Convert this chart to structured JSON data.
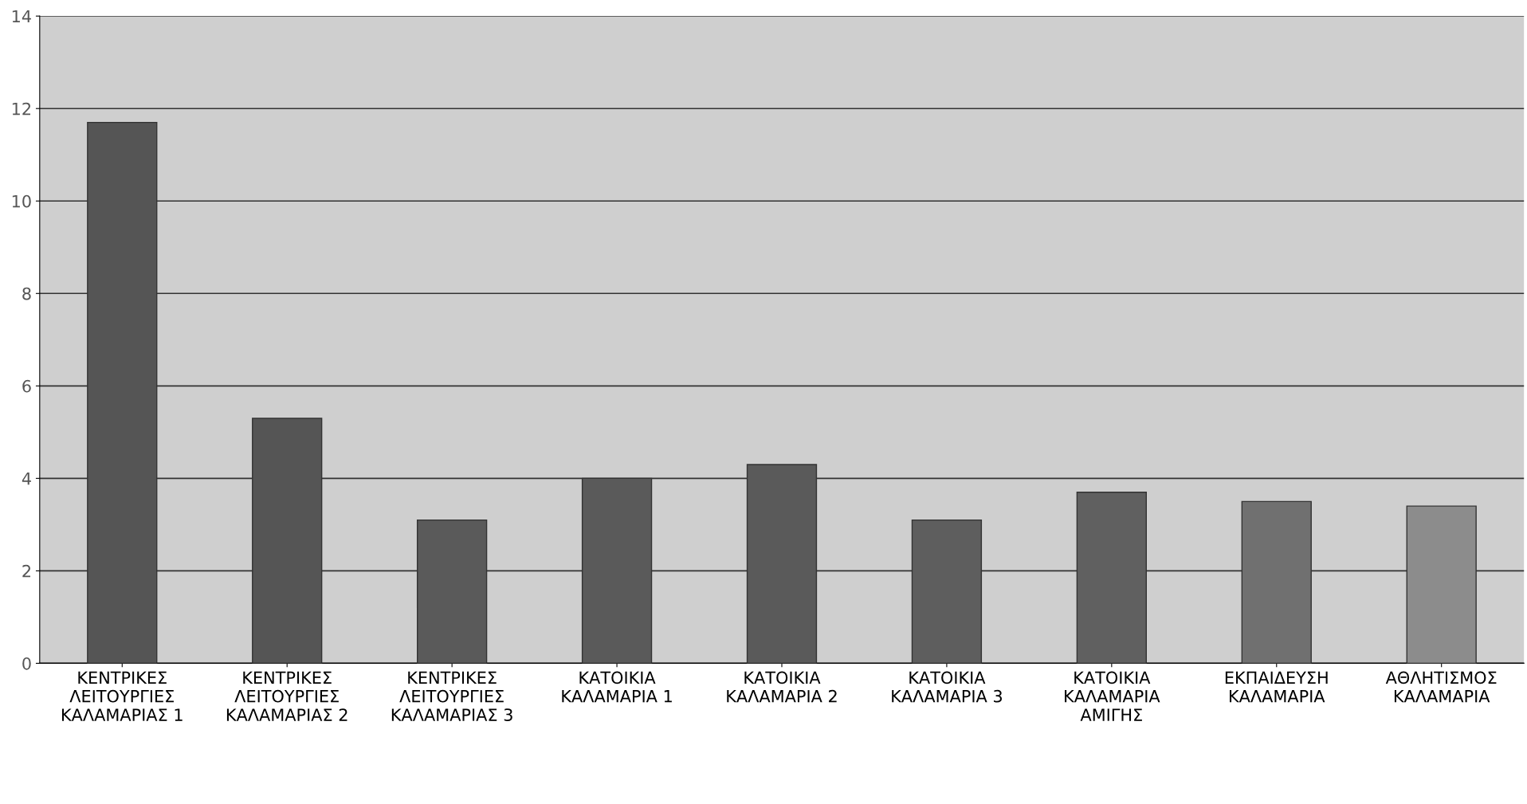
{
  "chart_data": {
    "type": "bar",
    "categories": [
      "ΚΕΝΤΡΙΚΕΣ\nΛΕΙΤΟΥΡΓΙΕΣ\nΚΑΛΑΜΑΡΙΑΣ 1",
      "ΚΕΝΤΡΙΚΕΣ\nΛΕΙΤΟΥΡΓΙΕΣ\nΚΑΛΑΜΑΡΙΑΣ 2",
      "ΚΕΝΤΡΙΚΕΣ\nΛΕΙΤΟΥΡΓΙΕΣ\nΚΑΛΑΜΑΡΙΑΣ 3",
      "ΚΑΤΟΙΚΙΑ\nΚΑΛΑΜΑΡΙΑ 1",
      "ΚΑΤΟΙΚΙΑ\nΚΑΛΑΜΑΡΙΑ 2",
      "ΚΑΤΟΙΚΙΑ\nΚΑΛΑΜΑΡΙΑ 3",
      "ΚΑΤΟΙΚΙΑ\nΚΑΛΑΜΑΡΙΑ\nΑΜΙΓΗΣ",
      "ΕΚΠΑΙΔΕΥΣΗ\nΚΑΛΑΜΑΡΙΑ",
      "ΑΘΛΗΤΙΣΜΟΣ\nΚΑΛΑΜΑΡΙΑ"
    ],
    "values": [
      11.7,
      5.3,
      3.1,
      4.0,
      4.3,
      3.1,
      3.7,
      3.5,
      3.4
    ],
    "colors": [
      "#555555",
      "#555555",
      "#5a5a5a",
      "#5a5a5a",
      "#5a5a5a",
      "#5e5e5e",
      "#606060",
      "#707070",
      "#8c8c8c"
    ],
    "ylim": [
      0,
      14
    ],
    "yticks": [
      0,
      2,
      4,
      6,
      8,
      10,
      12,
      14
    ],
    "grid": "y"
  }
}
